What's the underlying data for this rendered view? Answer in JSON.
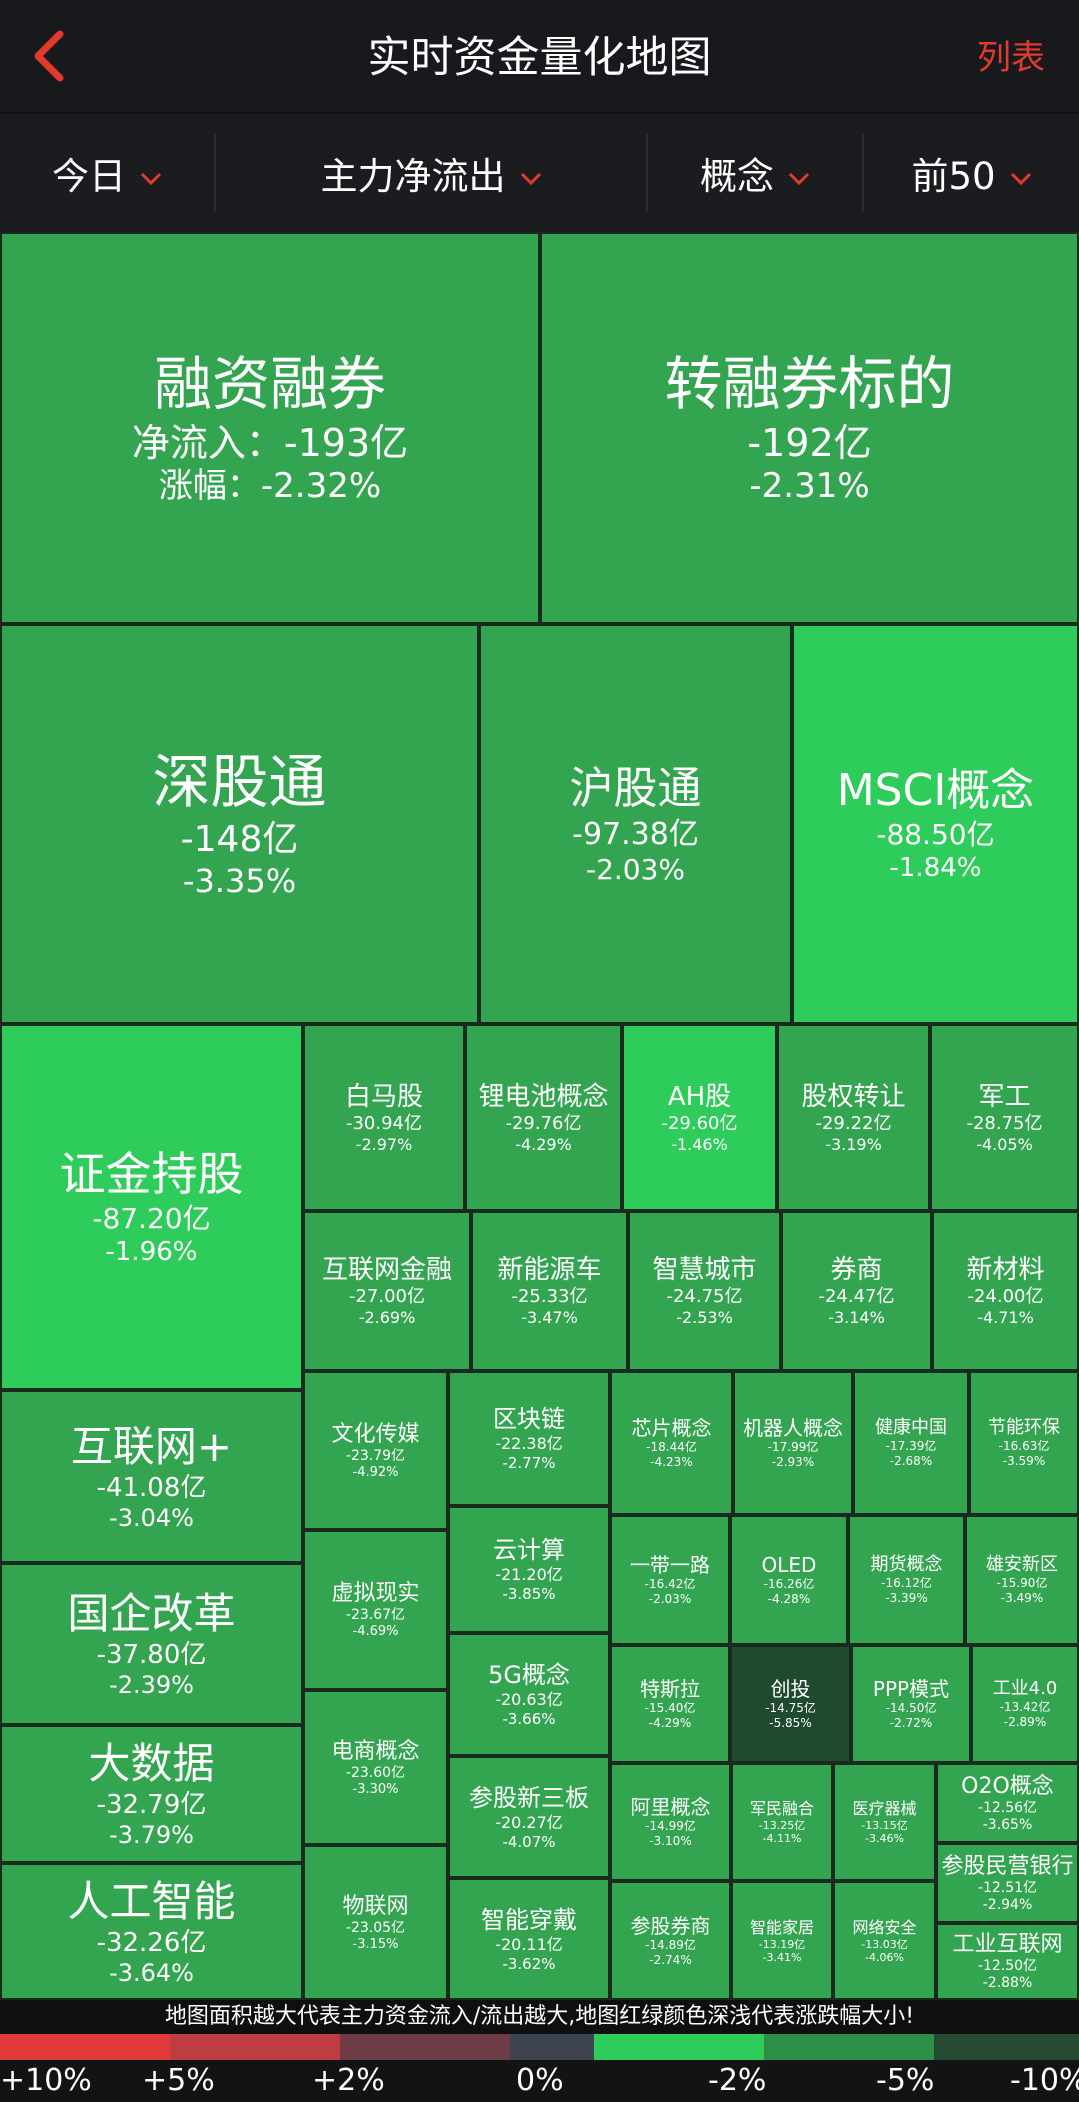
{
  "header": {
    "title": "实时资金量化地图",
    "list_label": "列表"
  },
  "filters": [
    {
      "label": "今日"
    },
    {
      "label": "主力净流出"
    },
    {
      "label": "概念"
    },
    {
      "label": "前50"
    }
  ],
  "colors": {
    "accent_red": "#e23a2c",
    "strong_down": "#2ecc5b",
    "mid_down": "#33a551",
    "deep_down": "#1f4a30"
  },
  "tiles": [
    {
      "name": "融资融券",
      "flow": "净流入：-193亿",
      "change": "涨幅：-2.32%",
      "color": "#33a551"
    },
    {
      "name": "转融券标的",
      "flow": "-192亿",
      "change": "-2.31%",
      "color": "#33a551"
    },
    {
      "name": "深股通",
      "flow": "-148亿",
      "change": "-3.35%",
      "color": "#33a551"
    },
    {
      "name": "沪股通",
      "flow": "-97.38亿",
      "change": "-2.03%",
      "color": "#33a551"
    },
    {
      "name": "MSCI概念",
      "flow": "-88.50亿",
      "change": "-1.84%",
      "color": "#2ecc5b"
    },
    {
      "name": "证金持股",
      "flow": "-87.20亿",
      "change": "-1.96%",
      "color": "#2ecc5b"
    },
    {
      "name": "白马股",
      "flow": "-30.94亿",
      "change": "-2.97%",
      "color": "#33a551"
    },
    {
      "name": "锂电池概念",
      "flow": "-29.76亿",
      "change": "-4.29%",
      "color": "#33a551"
    },
    {
      "name": "AH股",
      "flow": "-29.60亿",
      "change": "-1.46%",
      "color": "#2ecc5b"
    },
    {
      "name": "股权转让",
      "flow": "-29.22亿",
      "change": "-3.19%",
      "color": "#33a551"
    },
    {
      "name": "军工",
      "flow": "-28.75亿",
      "change": "-4.05%",
      "color": "#33a551"
    },
    {
      "name": "互联网金融",
      "flow": "-27.00亿",
      "change": "-2.69%",
      "color": "#33a551"
    },
    {
      "name": "新能源车",
      "flow": "-25.33亿",
      "change": "-3.47%",
      "color": "#33a551"
    },
    {
      "name": "智慧城市",
      "flow": "-24.75亿",
      "change": "-2.53%",
      "color": "#33a551"
    },
    {
      "name": "券商",
      "flow": "-24.47亿",
      "change": "-3.14%",
      "color": "#33a551"
    },
    {
      "name": "新材料",
      "flow": "-24.00亿",
      "change": "-4.71%",
      "color": "#33a551"
    },
    {
      "name": "互联网+",
      "flow": "-41.08亿",
      "change": "-3.04%",
      "color": "#33a551"
    },
    {
      "name": "国企改革",
      "flow": "-37.80亿",
      "change": "-2.39%",
      "color": "#33a551"
    },
    {
      "name": "大数据",
      "flow": "-32.79亿",
      "change": "-3.79%",
      "color": "#33a551"
    },
    {
      "name": "人工智能",
      "flow": "-32.26亿",
      "change": "-3.64%",
      "color": "#33a551"
    },
    {
      "name": "文化传媒",
      "flow": "-23.79亿",
      "change": "-4.92%",
      "color": "#33a551"
    },
    {
      "name": "虚拟现实",
      "flow": "-23.67亿",
      "change": "-4.69%",
      "color": "#33a551"
    },
    {
      "name": "电商概念",
      "flow": "-23.60亿",
      "change": "-3.30%",
      "color": "#33a551"
    },
    {
      "name": "物联网",
      "flow": "-23.05亿",
      "change": "-3.15%",
      "color": "#33a551"
    },
    {
      "name": "区块链",
      "flow": "-22.38亿",
      "change": "-2.77%",
      "color": "#33a551"
    },
    {
      "name": "云计算",
      "flow": "-21.20亿",
      "change": "-3.85%",
      "color": "#33a551"
    },
    {
      "name": "5G概念",
      "flow": "-20.63亿",
      "change": "-3.66%",
      "color": "#33a551"
    },
    {
      "name": "参股新三板",
      "flow": "-20.27亿",
      "change": "-4.07%",
      "color": "#33a551"
    },
    {
      "name": "智能穿戴",
      "flow": "-20.11亿",
      "change": "-3.62%",
      "color": "#33a551"
    },
    {
      "name": "芯片概念",
      "flow": "-18.44亿",
      "change": "-4.23%",
      "color": "#33a551"
    },
    {
      "name": "机器人概念",
      "flow": "-17.99亿",
      "change": "-2.93%",
      "color": "#33a551"
    },
    {
      "name": "健康中国",
      "flow": "-17.39亿",
      "change": "-2.68%",
      "color": "#33a551"
    },
    {
      "name": "节能环保",
      "flow": "-16.63亿",
      "change": "-3.59%",
      "color": "#33a551"
    },
    {
      "name": "一带一路",
      "flow": "-16.42亿",
      "change": "-2.03%",
      "color": "#33a551"
    },
    {
      "name": "OLED",
      "flow": "-16.26亿",
      "change": "-4.28%",
      "color": "#33a551"
    },
    {
      "name": "期货概念",
      "flow": "-16.12亿",
      "change": "-3.39%",
      "color": "#33a551"
    },
    {
      "name": "雄安新区",
      "flow": "-15.90亿",
      "change": "-3.49%",
      "color": "#33a551"
    },
    {
      "name": "特斯拉",
      "flow": "-15.40亿",
      "change": "-4.29%",
      "color": "#33a551"
    },
    {
      "name": "创投",
      "flow": "-14.75亿",
      "change": "-5.85%",
      "color": "#1f4a30"
    },
    {
      "name": "PPP模式",
      "flow": "-14.50亿",
      "change": "-2.72%",
      "color": "#33a551"
    },
    {
      "name": "工业4.0",
      "flow": "-13.42亿",
      "change": "-2.89%",
      "color": "#33a551"
    },
    {
      "name": "阿里概念",
      "flow": "-14.99亿",
      "change": "-3.10%",
      "color": "#33a551"
    },
    {
      "name": "军民融合",
      "flow": "-13.25亿",
      "change": "-4.11%",
      "color": "#33a551"
    },
    {
      "name": "医疗器械",
      "flow": "-13.15亿",
      "change": "-3.46%",
      "color": "#33a551"
    },
    {
      "name": "O2O概念",
      "flow": "-12.56亿",
      "change": "-3.65%",
      "color": "#33a551"
    },
    {
      "name": "参股民营银行",
      "flow": "-12.51亿",
      "change": "-2.94%",
      "color": "#33a551"
    },
    {
      "name": "参股券商",
      "flow": "-14.89亿",
      "change": "-2.74%",
      "color": "#33a551"
    },
    {
      "name": "智能家居",
      "flow": "-13.19亿",
      "change": "-3.41%",
      "color": "#33a551"
    },
    {
      "name": "网络安全",
      "flow": "-13.03亿",
      "change": "-4.06%",
      "color": "#33a551"
    },
    {
      "name": "工业互联网",
      "flow": "-12.50亿",
      "change": "-2.88%",
      "color": "#33a551"
    }
  ],
  "footer": {
    "note": "地图面积越大代表主力资金流入/流出越大,地图红绿颜色深浅代表涨跌幅大小!",
    "legend_colors": [
      "#e23a3a",
      "#bf3c42",
      "#6d3c44",
      "#3d4450",
      "#2ecc5b",
      "#2c8f48",
      "#244a31"
    ],
    "ticks": [
      "+10%",
      "+5%",
      "+2%",
      "0%",
      "-2%",
      "-5%",
      "-10%"
    ]
  }
}
